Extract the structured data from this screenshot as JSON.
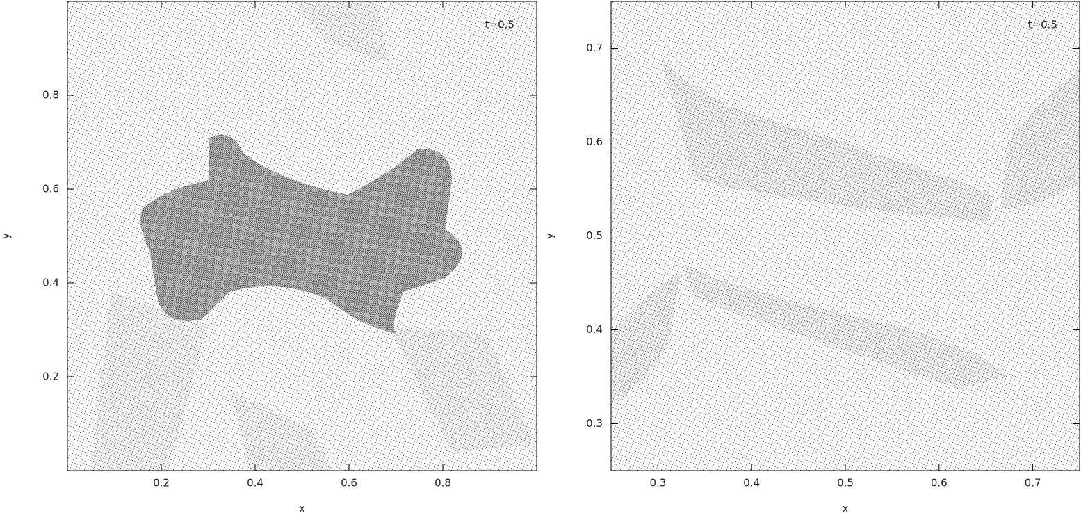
{
  "chart_data": [
    {
      "type": "scatter",
      "xlabel": "x",
      "ylabel": "y",
      "annotation": "t=0.5",
      "xlim": [
        0,
        1
      ],
      "ylim": [
        0,
        1
      ],
      "xticks": [
        0.2,
        0.4,
        0.6,
        0.8
      ],
      "yticks": [
        0.2,
        0.4,
        0.6,
        0.8
      ]
    },
    {
      "type": "scatter",
      "xlabel": "x",
      "ylabel": "y",
      "annotation": "t=0.5",
      "xlim": [
        0.25,
        0.75
      ],
      "ylim": [
        0.25,
        0.75
      ],
      "xticks": [
        0.3,
        0.4,
        0.5,
        0.6,
        0.7
      ],
      "yticks": [
        0.3,
        0.4,
        0.5,
        0.6,
        0.7
      ]
    }
  ]
}
